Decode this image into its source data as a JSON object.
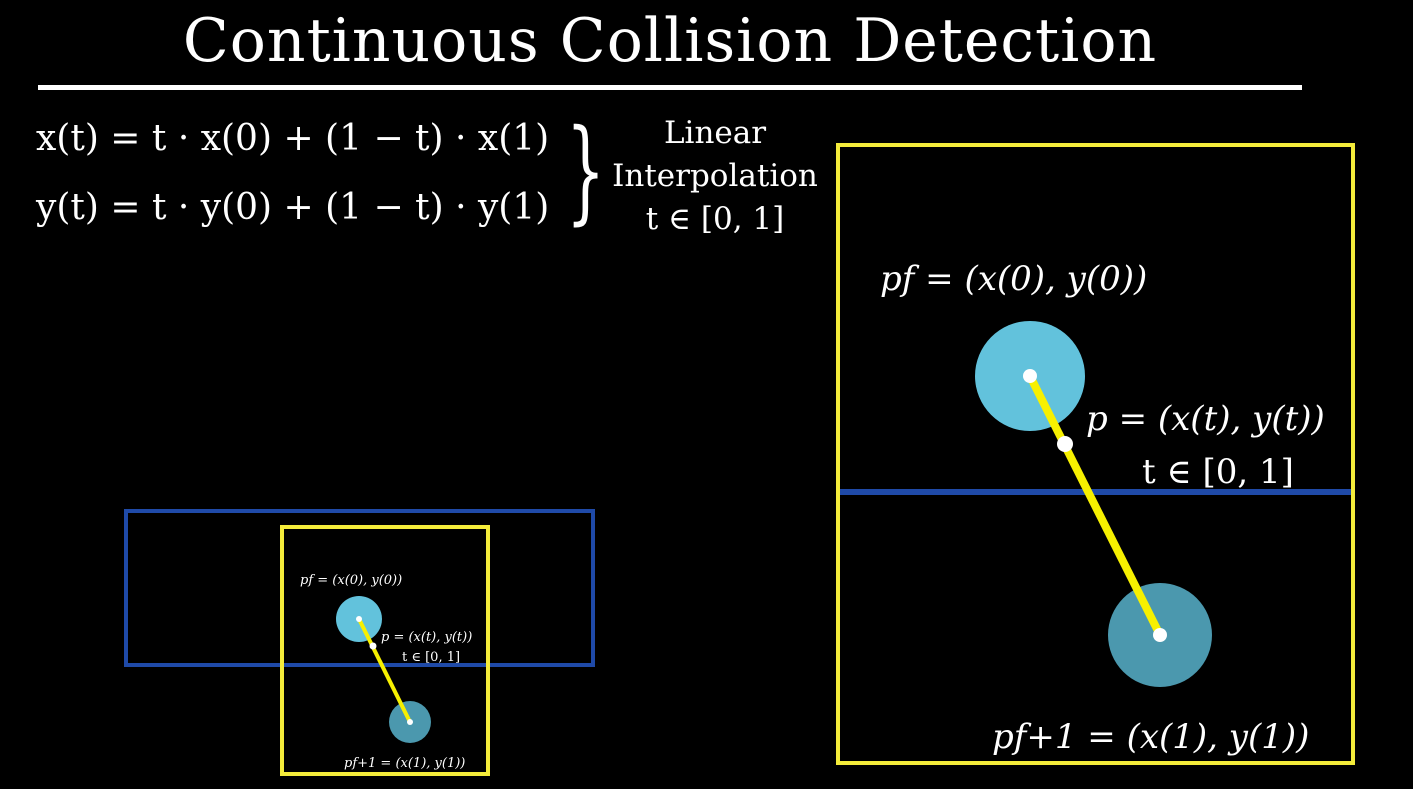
{
  "title": "Continuous Collision Detection",
  "equations": {
    "x_line": "x(t) = t · x(0) + (1 − t) · x(1)",
    "y_line": "y(t) = t · y(0) + (1 − t) · y(1)"
  },
  "annotation": {
    "line1": "Linear",
    "line2": "Interpolation",
    "line3": "t ∈ [0, 1]"
  },
  "labels": {
    "start_point": "pf = (x(0), y(0))",
    "mid_point": "p = (x(t), y(t))",
    "mid_range": "t ∈ [0, 1]",
    "end_point": "pf+1 = (x(1), y(1))"
  },
  "colors": {
    "background": "#000000",
    "text": "#ffffff",
    "yellow_frame": "#f4ec3a",
    "blue_wall": "#1f4aa8",
    "ball_start": "#62c2dc",
    "ball_end": "#4b98ae",
    "path_line": "#f7f000"
  }
}
